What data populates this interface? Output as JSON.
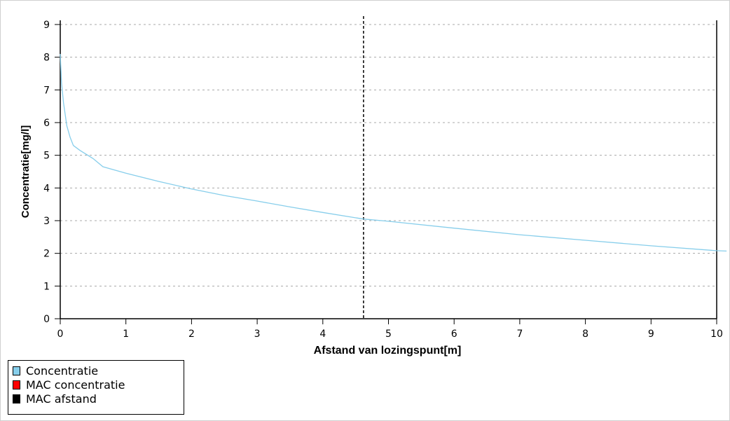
{
  "chart_data": {
    "type": "line",
    "xlabel": "Afstand van lozingspunt[m]",
    "ylabel": "Concentratie[mg/l]",
    "xlim": [
      0,
      10
    ],
    "ylim": [
      0,
      9
    ],
    "xticks": [
      "0",
      "1",
      "2",
      "3",
      "4",
      "5",
      "6",
      "7",
      "8",
      "9",
      "10"
    ],
    "yticks": [
      "0",
      "1",
      "2",
      "3",
      "4",
      "5",
      "6",
      "7",
      "8",
      "9"
    ],
    "grid": "horizontal-dashed",
    "legend_placement": "bottom-left",
    "series": [
      {
        "name": "Concentratie",
        "color": "#87ceeb",
        "x": [
          0.0,
          0.02,
          0.05,
          0.1,
          0.15,
          0.2,
          0.3,
          0.5,
          0.65,
          1.0,
          1.5,
          2.0,
          2.5,
          3.0,
          3.5,
          4.0,
          4.62,
          5.0,
          6.0,
          7.0,
          8.0,
          9.0,
          10.0,
          10.15
        ],
        "y": [
          8.1,
          7.2,
          6.6,
          5.9,
          5.55,
          5.3,
          5.15,
          4.9,
          4.65,
          4.45,
          4.2,
          3.97,
          3.77,
          3.6,
          3.42,
          3.25,
          3.05,
          2.98,
          2.77,
          2.57,
          2.4,
          2.23,
          2.08,
          2.07
        ]
      }
    ],
    "mac_afstand": 4.62,
    "legend": [
      {
        "label": "Concentratie",
        "color": "#87ceeb"
      },
      {
        "label": "MAC concentratie",
        "color": "#ff0000"
      },
      {
        "label": "MAC afstand",
        "color": "#000000"
      }
    ]
  }
}
